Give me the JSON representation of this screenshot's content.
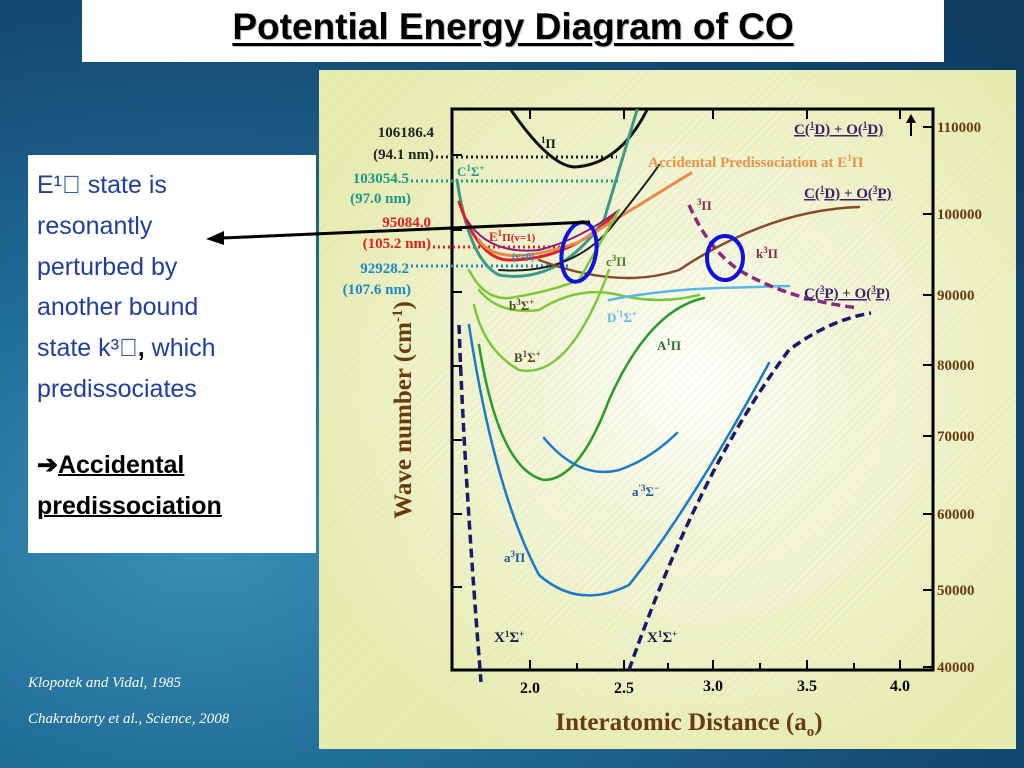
{
  "title": "Potential Energy Diagram of CO",
  "text_box": {
    "line1": "E¹\u0000 state is",
    "line2": "resonantly",
    "line3": "perturbed by",
    "line4": "another bound",
    "line5_a": "state k³\u0000",
    "line5_b": ",",
    "line5_c": " which",
    "line6": "predissociates",
    "arrow": "➔",
    "emph1": "Accidental",
    "emph2": "predissociation"
  },
  "citations": {
    "c1": "Klopotek and Vidal, 1985",
    "c2": "Chakraborty et al., Science, 2008"
  },
  "diagram": {
    "xlabel": "Interatomic Distance (a",
    "xlabel_sub": "o",
    "xlabel_end": ")",
    "ylabel": "Wave number (cm",
    "ylabel_sup": "-1",
    "ylabel_end": ")",
    "x_ticks": [
      "2.0",
      "2.5",
      "3.0",
      "3.5",
      "4.0"
    ],
    "y_ticks": [
      "110000",
      "100000",
      "90000",
      "80000",
      "70000",
      "60000",
      "50000",
      "40000"
    ],
    "left_labels": [
      {
        "value": "106186.4",
        "nm": "(94.1 nm)",
        "color": "#222222"
      },
      {
        "value": "103054.5",
        "nm": "(97.0 nm)",
        "color": "#1a9a8a"
      },
      {
        "value": "95084.0",
        "nm": "(105.2 nm)",
        "color": "#e02020"
      },
      {
        "value": "92928.2",
        "nm": "(107.6 nm)",
        "color": "#1a8ac8"
      }
    ],
    "dissociation": {
      "d1_a": "C(",
      "d1_b": "1",
      "d1_c": "D) + O(",
      "d1_d": "1",
      "d1_e": "D)",
      "d2_a": "C(",
      "d2_b": "1",
      "d2_c": "D) + O(",
      "d2_d": "3",
      "d2_e": "P)",
      "d3_a": "C(",
      "d3_b": "3",
      "d3_c": "P) + O(",
      "d3_d": "3",
      "d3_e": "P)"
    },
    "accidental": "Accidental Predissociation at E",
    "accidental_sup": "1",
    "accidental_end": "Π",
    "state_labels": {
      "pi1": "Π",
      "pi1_sup": "1",
      "pi3": "Π",
      "pi3_sup": "3",
      "C": "C",
      "C_rest": "Σ",
      "C_sup": "1",
      "C_sup2": "+",
      "E": "E",
      "E_sup": "1",
      "E_rest": "Π(v=1)",
      "v0": "(v=0)",
      "c3": "c",
      "c3_sup": "3",
      "c3_rest": "Π",
      "k3": "k",
      "k3_sup": "3",
      "k3_rest": "Π",
      "b3": "b",
      "b3_sup": "3",
      "b3_rest": "Σ",
      "b3_sup2": "+",
      "D": "D",
      "D_sup": "'1",
      "D_rest": "Σ",
      "D_sup2": "+",
      "B": "B",
      "B_sup": "1",
      "B_rest": "Σ",
      "B_sup2": "+",
      "A": "A",
      "A_sup": "1",
      "A_rest": "Π",
      "a3s": "a",
      "a3s_sup": "'3",
      "a3s_rest": "Σ",
      "a3s_sup2": "−",
      "a3p": "a",
      "a3p_sup": "3",
      "a3p_rest": "Π",
      "X1": "X",
      "X1_sup": "1",
      "X1_rest": "Σ",
      "X1_sup2": "+",
      "X2": "X",
      "X2_sup": "1",
      "X2_rest": "Σ",
      "X2_sup2": "+"
    },
    "colors": {
      "axis_label": "#6b3a10",
      "tick": "#000000",
      "dissociation_label": "#3a1f6b",
      "accidental": "#e8924a",
      "circle": "#1010e0"
    }
  }
}
